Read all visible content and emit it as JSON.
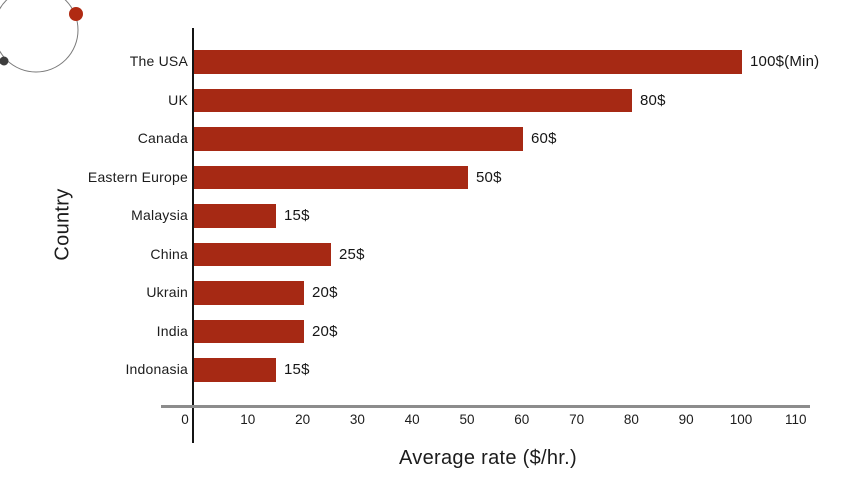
{
  "page": {
    "background": "#ffffff"
  },
  "decoration": {
    "name": "orbit-logo",
    "circle_color": "#7a7a7a",
    "red_dot_color": "#b02a12",
    "dark_dot_color": "#3d3d3d"
  },
  "chart_data": {
    "type": "bar",
    "orientation": "horizontal",
    "title": "",
    "xlabel": "Average rate ($/hr.)",
    "ylabel": "Country",
    "categories": [
      "The USA",
      "UK",
      "Canada",
      "Eastern Europe",
      "Malaysia",
      "China",
      "Ukrain",
      "India",
      "Indonasia"
    ],
    "values": [
      100,
      80,
      60,
      50,
      15,
      25,
      20,
      20,
      15
    ],
    "value_labels": [
      "100$(Min)",
      "80$",
      "60$",
      "50$",
      "15$",
      "25$",
      "20$",
      "20$",
      "15$"
    ],
    "x_ticks": [
      0,
      10,
      20,
      30,
      40,
      50,
      60,
      70,
      80,
      90,
      100,
      110
    ],
    "xlim": [
      0,
      110
    ],
    "bar_color": "#a62914",
    "axis_line_color": "#141414",
    "baseline_color": "#8c8c8c",
    "grid": false,
    "legend": null
  }
}
